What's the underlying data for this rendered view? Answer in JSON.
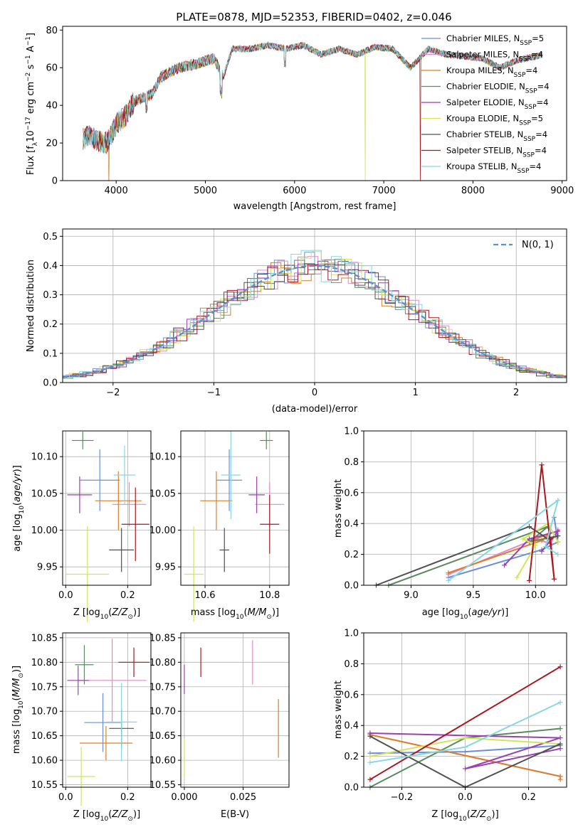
{
  "figure_title": "PLATE=0878, MJD=52353, FIBERID=0402, z=0.046",
  "models": [
    {
      "label": "Chabrier MILES, N",
      "nssp": "=5",
      "color": "#6a8fd8"
    },
    {
      "label": "Salpeter MILES, N",
      "nssp": "=4",
      "color": "#e089c8"
    },
    {
      "label": "Kroupa MILES, N",
      "nssp": "=4",
      "color": "#e07b25"
    },
    {
      "label": "Chabrier ELODIE, N",
      "nssp": "=4",
      "color": "#5a8a5e"
    },
    {
      "label": "Salpeter ELODIE, N",
      "nssp": "=4",
      "color": "#9b3fb5"
    },
    {
      "label": "Kroupa ELODIE, N",
      "nssp": "=5",
      "color": "#d3e35a"
    },
    {
      "label": "Chabrier STELIB, N",
      "nssp": "=4",
      "color": "#505050"
    },
    {
      "label": "Salpeter STELIB, N",
      "nssp": "=4",
      "color": "#a8181e"
    },
    {
      "label": "Kroupa STELIB, N",
      "nssp": "=4",
      "color": "#86d8e0"
    }
  ],
  "chart_data": [
    {
      "id": "spectrum",
      "type": "line",
      "xlabel": "wavelength [Angstrom, rest frame]",
      "ylabel": "Flux [f",
      "ylabel_tail": "10",
      "xlim": [
        3400,
        9050
      ],
      "ylim": [
        0,
        82
      ],
      "xticks": [
        4000,
        5000,
        6000,
        7000,
        8000,
        9000
      ],
      "yticks": [
        0,
        20,
        40,
        60,
        80
      ],
      "x": [
        3630,
        3700,
        3800,
        3900,
        4000,
        4100,
        4200,
        4300,
        4400,
        4500,
        4700,
        4900,
        5100,
        5200,
        5300,
        5500,
        5700,
        5900,
        6100,
        6300,
        6500,
        6700,
        6900,
        7100,
        7300,
        7500,
        7700,
        7900,
        8100,
        8300,
        8500,
        8700,
        8780
      ],
      "y": [
        22,
        24,
        21,
        20,
        30,
        34,
        42,
        44,
        46,
        55,
        60,
        62,
        65,
        55,
        70,
        70,
        72,
        70,
        72,
        67,
        70,
        67,
        71,
        70,
        60,
        70,
        67,
        66,
        65,
        60,
        64,
        66,
        67
      ],
      "drops": [
        {
          "model": 5,
          "x": 6790
        },
        {
          "model": 7,
          "x": 7410
        },
        {
          "model": 2,
          "x": 3920
        }
      ]
    },
    {
      "id": "residuals",
      "type": "area",
      "xlabel": "(data-model)/error",
      "ylabel": "Normed distribution",
      "legend": "N(0, 1)",
      "xlim": [
        -2.5,
        2.5
      ],
      "ylim": [
        0,
        0.525
      ],
      "xticks": [
        -2,
        -1,
        0,
        1,
        2
      ],
      "yticks": [
        0,
        0.1,
        0.2,
        0.3,
        0.4,
        0.5
      ],
      "bin_width": 0.1,
      "hist_range": [
        -2.5,
        2.5
      ]
    },
    {
      "id": "age-vs-Z",
      "type": "scatter",
      "xlabel": "Z [log",
      "ylabel": "age  [log",
      "xlim": [
        -0.01,
        0.275
      ],
      "ylim": [
        9.925,
        10.135
      ],
      "xticks": [
        0.0,
        0.2
      ],
      "yticks": [
        9.95,
        10.0,
        10.05,
        10.1
      ],
      "points": [
        {
          "x": 0.11,
          "y": 10.068,
          "ex": 0.065,
          "ey": 0.042
        },
        {
          "x": 0.205,
          "y": 10.035,
          "ex": 0.055,
          "ey": 0.03
        },
        {
          "x": 0.17,
          "y": 10.04,
          "ex": 0.075,
          "ey": 0.04
        },
        {
          "x": 0.055,
          "y": 10.122,
          "ex": 0.035,
          "ey": 0.012
        },
        {
          "x": 0.045,
          "y": 10.048,
          "ex": 0.04,
          "ey": 0.025
        },
        {
          "x": 0.07,
          "y": 9.94,
          "ex": 0.07,
          "ey": 0.065
        },
        {
          "x": 0.18,
          "y": 9.973,
          "ex": 0.04,
          "ey": 0.03
        },
        {
          "x": 0.225,
          "y": 10.008,
          "ex": 0.045,
          "ey": 0.05
        },
        {
          "x": 0.19,
          "y": 10.075,
          "ex": 0.035,
          "ey": 0.04
        }
      ]
    },
    {
      "id": "age-vs-mass",
      "type": "scatter",
      "xlabel": "mass [log",
      "ylabel": "",
      "xlim": [
        10.525,
        10.86
      ],
      "ylim": [
        9.925,
        10.135
      ],
      "xticks": [
        10.6,
        10.8
      ],
      "yticks": [
        9.95,
        10.0,
        10.05,
        10.1
      ],
      "points": [
        {
          "x": 10.675,
          "y": 10.068,
          "ex": 0.04,
          "ey": 0.042
        },
        {
          "x": 10.8,
          "y": 10.035,
          "ex": 0.045,
          "ey": 0.03
        },
        {
          "x": 10.635,
          "y": 10.04,
          "ex": 0.05,
          "ey": 0.04
        },
        {
          "x": 10.79,
          "y": 10.122,
          "ex": 0.02,
          "ey": 0.012
        },
        {
          "x": 10.76,
          "y": 10.048,
          "ex": 0.025,
          "ey": 0.025
        },
        {
          "x": 10.565,
          "y": 9.94,
          "ex": 0.03,
          "ey": 0.065
        },
        {
          "x": 10.66,
          "y": 9.973,
          "ex": 0.015,
          "ey": 0.03
        },
        {
          "x": 10.8,
          "y": 10.008,
          "ex": 0.03,
          "ey": 0.04
        },
        {
          "x": 10.68,
          "y": 10.075,
          "ex": 0.03,
          "ey": 0.06
        }
      ]
    },
    {
      "id": "weight-vs-age",
      "type": "line",
      "xlabel": "age  [log",
      "ylabel": "mass weight",
      "xlim": [
        8.62,
        10.25
      ],
      "ylim": [
        0,
        1.0
      ],
      "xticks": [
        9.0,
        9.5,
        10.0
      ],
      "yticks": [
        0.0,
        0.2,
        0.4,
        0.6,
        0.8,
        1.0
      ],
      "series": [
        {
          "x": [
            9.3,
            10.05,
            10.18,
            10.15
          ],
          "y": [
            0.05,
            0.23,
            0.28,
            0.44
          ]
        },
        {
          "x": [
            9.3,
            10.0,
            10.12,
            10.18
          ],
          "y": [
            0.07,
            0.3,
            0.27,
            0.36
          ]
        },
        {
          "x": [
            9.3,
            10.05,
            10.12,
            9.95
          ],
          "y": [
            0.08,
            0.29,
            0.34,
            0.28
          ]
        },
        {
          "x": [
            8.82,
            10.1,
            9.95,
            10.18
          ],
          "y": [
            0.0,
            0.38,
            0.28,
            0.32
          ]
        },
        {
          "x": [
            9.75,
            9.95,
            10.18,
            10.05
          ],
          "y": [
            0.13,
            0.3,
            0.35,
            0.22
          ]
        },
        {
          "x": [
            9.85,
            10.0,
            9.9,
            10.1,
            10.18
          ],
          "y": [
            0.05,
            0.26,
            0.3,
            0.4,
            0.28
          ]
        },
        {
          "x": [
            8.72,
            9.95,
            10.1,
            10.18
          ],
          "y": [
            0.0,
            0.38,
            0.3,
            0.32
          ]
        },
        {
          "x": [
            9.95,
            10.05,
            10.15,
            10.12
          ],
          "y": [
            0.03,
            0.78,
            0.04,
            0.3
          ]
        },
        {
          "x": [
            9.3,
            10.18,
            10.08,
            10.18
          ],
          "y": [
            0.03,
            0.55,
            0.25,
            0.2
          ]
        }
      ]
    },
    {
      "id": "mass-vs-Z",
      "type": "scatter",
      "xlabel": "Z [log",
      "ylabel": "mass [log",
      "xlim": [
        -0.01,
        0.275
      ],
      "ylim": [
        10.545,
        10.86
      ],
      "xticks": [
        0.0,
        0.2
      ],
      "yticks": [
        10.55,
        10.6,
        10.65,
        10.7,
        10.75,
        10.8,
        10.85
      ],
      "points": [
        {
          "x": 0.12,
          "y": 10.677,
          "ex": 0.06,
          "ey": 0.06
        },
        {
          "x": 0.15,
          "y": 10.763,
          "ex": 0.11,
          "ey": 0.085
        },
        {
          "x": 0.13,
          "y": 10.635,
          "ex": 0.085,
          "ey": 0.035
        },
        {
          "x": 0.06,
          "y": 10.795,
          "ex": 0.03,
          "ey": 0.04
        },
        {
          "x": 0.04,
          "y": 10.763,
          "ex": 0.035,
          "ey": 0.03
        },
        {
          "x": 0.05,
          "y": 10.567,
          "ex": 0.045,
          "ey": 0.06
        },
        {
          "x": 0.18,
          "y": 10.665,
          "ex": 0.04,
          "ey": 0.04
        },
        {
          "x": 0.22,
          "y": 10.8,
          "ex": 0.05,
          "ey": 0.03
        },
        {
          "x": 0.18,
          "y": 10.678,
          "ex": 0.05,
          "ey": 0.08
        }
      ]
    },
    {
      "id": "mass-vs-EBV",
      "type": "scatter",
      "xlabel": "E(B-V)",
      "ylabel": "",
      "xlim": [
        -0.0015,
        0.0445
      ],
      "ylim": [
        10.545,
        10.86
      ],
      "xticks": [
        0.0,
        0.025
      ],
      "tick_labels": [
        "0.000",
        "0.025"
      ],
      "yticks": [
        10.55,
        10.6,
        10.65,
        10.7,
        10.75,
        10.8,
        10.85
      ],
      "points": [
        {
          "x": 0.0,
          "y": 10.765,
          "ex": 0.0,
          "ey": 0.03
        },
        {
          "x": 0.0,
          "y": 10.605,
          "ex": 0.0,
          "ey": 0.04
        },
        {
          "x": 0.007,
          "y": 10.8,
          "ex": 0.0,
          "ey": 0.03
        },
        {
          "x": 0.029,
          "y": 10.8,
          "ex": 0.0,
          "ey": 0.045
        },
        {
          "x": 0.04,
          "y": 10.665,
          "ex": 0.0,
          "ey": 0.06
        },
        {
          "x": 0.0445,
          "y": 10.665,
          "ex": 0.0,
          "ey": 0.07
        }
      ],
      "point_colors": [
        4,
        5,
        7,
        1,
        2,
        8
      ]
    },
    {
      "id": "weight-vs-Z",
      "type": "line",
      "xlabel": "Z [log",
      "ylabel": "mass weight",
      "xlim": [
        -0.32,
        0.32
      ],
      "ylim": [
        0,
        1.0
      ],
      "xticks": [
        -0.2,
        0.0,
        0.2
      ],
      "yticks": [
        0.0,
        0.2,
        0.4,
        0.6,
        0.8,
        1.0
      ],
      "series": [
        {
          "x": [
            -0.3,
            0.0,
            0.3
          ],
          "y": [
            0.22,
            0.23,
            0.27
          ]
        },
        {
          "x": [
            -0.3,
            0.3
          ],
          "y": [
            0.34,
            0.07
          ]
        },
        {
          "x": [
            -0.3,
            0.3,
            0.3
          ],
          "y": [
            0.34,
            0.07,
            0.05
          ]
        },
        {
          "x": [
            -0.3,
            0.0,
            0.3
          ],
          "y": [
            0.0,
            0.32,
            0.38
          ]
        },
        {
          "x": [
            -0.3,
            -0.3,
            0.3,
            0.0,
            0.3
          ],
          "y": [
            0.35,
            0.35,
            0.32,
            0.12,
            0.25
          ]
        },
        {
          "x": [
            -0.3,
            0.0,
            0.3
          ],
          "y": [
            0.2,
            0.32,
            0.28
          ]
        },
        {
          "x": [
            -0.3,
            0.0,
            0.3
          ],
          "y": [
            0.33,
            0.0,
            0.28
          ]
        },
        {
          "x": [
            -0.3,
            0.3
          ],
          "y": [
            0.05,
            0.78
          ]
        },
        {
          "x": [
            -0.3,
            0.0,
            0.3
          ],
          "y": [
            0.16,
            0.26,
            0.55
          ]
        }
      ]
    }
  ]
}
